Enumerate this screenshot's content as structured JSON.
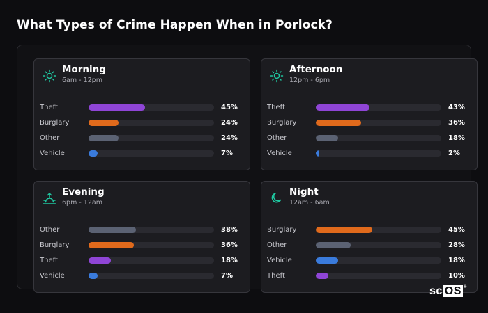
{
  "title": "What Types of Crime Happen When in Porlock?",
  "colors": {
    "theft": "#8f45d6",
    "burglary": "#e06a1c",
    "other": "#5b6273",
    "vehicle": "#3a7bdc",
    "icon_accent": "#1fc7a0"
  },
  "cards": [
    {
      "title": "Morning",
      "subtitle": "6am - 12pm",
      "icon": "sun-icon",
      "rows": [
        {
          "label": "Theft",
          "value": "45%",
          "percent": 45,
          "color": "#8f45d6"
        },
        {
          "label": "Burglary",
          "value": "24%",
          "percent": 24,
          "color": "#e06a1c"
        },
        {
          "label": "Other",
          "value": "24%",
          "percent": 24,
          "color": "#5b6273"
        },
        {
          "label": "Vehicle",
          "value": "7%",
          "percent": 7,
          "color": "#3a7bdc"
        }
      ]
    },
    {
      "title": "Afternoon",
      "subtitle": "12pm - 6pm",
      "icon": "sun-icon",
      "rows": [
        {
          "label": "Theft",
          "value": "43%",
          "percent": 43,
          "color": "#8f45d6"
        },
        {
          "label": "Burglary",
          "value": "36%",
          "percent": 36,
          "color": "#e06a1c"
        },
        {
          "label": "Other",
          "value": "18%",
          "percent": 18,
          "color": "#5b6273"
        },
        {
          "label": "Vehicle",
          "value": "2%",
          "percent": 2,
          "color": "#3a7bdc"
        }
      ]
    },
    {
      "title": "Evening",
      "subtitle": "6pm - 12am",
      "icon": "sunset-icon",
      "rows": [
        {
          "label": "Other",
          "value": "38%",
          "percent": 38,
          "color": "#5b6273"
        },
        {
          "label": "Burglary",
          "value": "36%",
          "percent": 36,
          "color": "#e06a1c"
        },
        {
          "label": "Theft",
          "value": "18%",
          "percent": 18,
          "color": "#8f45d6"
        },
        {
          "label": "Vehicle",
          "value": "7%",
          "percent": 7,
          "color": "#3a7bdc"
        }
      ]
    },
    {
      "title": "Night",
      "subtitle": "12am - 6am",
      "icon": "moon-icon",
      "rows": [
        {
          "label": "Burglary",
          "value": "45%",
          "percent": 45,
          "color": "#e06a1c"
        },
        {
          "label": "Other",
          "value": "28%",
          "percent": 28,
          "color": "#5b6273"
        },
        {
          "label": "Vehicle",
          "value": "18%",
          "percent": 18,
          "color": "#3a7bdc"
        },
        {
          "label": "Theft",
          "value": "10%",
          "percent": 10,
          "color": "#8f45d6"
        }
      ]
    }
  ],
  "brand": {
    "prefix": "sc",
    "boxed": "OS",
    "mark": "®"
  }
}
